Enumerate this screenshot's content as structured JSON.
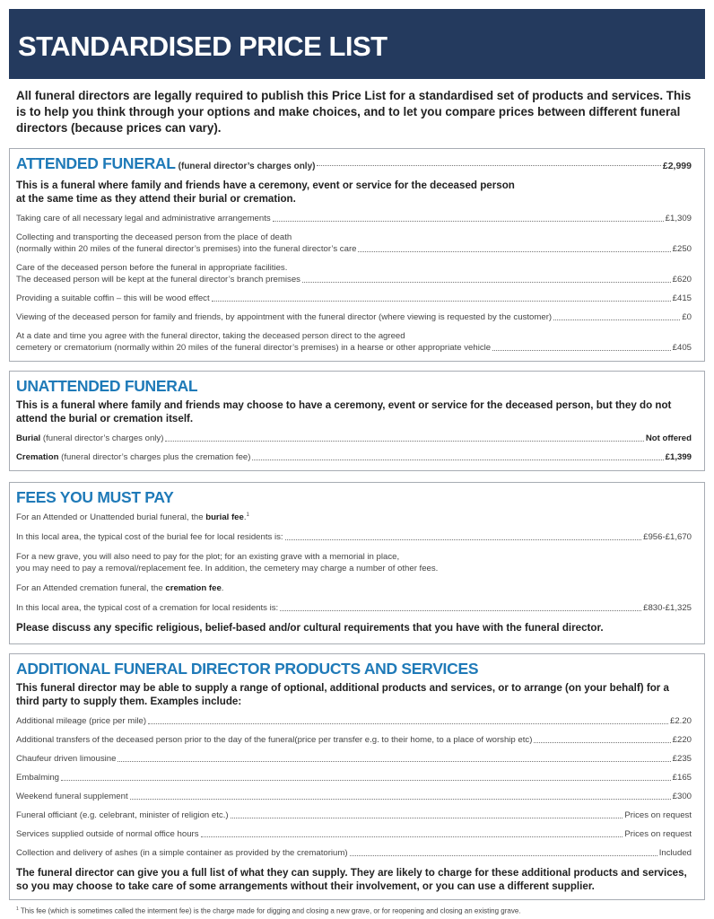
{
  "header": {
    "title": "STANDARDISED PRICE LIST",
    "bg_color": "#243a5e"
  },
  "intro": "All funeral directors are legally required to publish this Price List for a standardised set of products and services. This is to help you think through your options and make choices, and to let you compare prices between different funeral directors (because prices can vary).",
  "accent_color": "#1f7ab8",
  "attended": {
    "title": "ATTENDED FUNERAL",
    "subtitle": "(funeral director’s charges only)",
    "price": "£2,999",
    "description": "This is a funeral where family and friends have a ceremony, event or service for the deceased person\nat the same time as they attend their burial or cremation.",
    "items": [
      {
        "label": "Taking care of all necessary legal and administrative arrangements",
        "price": "£1,309"
      },
      {
        "label": "Collecting and transporting the deceased person from the place of death\n(normally within 20 miles of the funeral director’s premises) into the funeral director’s care",
        "price": "£250"
      },
      {
        "label": "Care of the deceased person before the funeral in appropriate facilities.\nThe deceased person will be kept at the funeral director’s branch premises",
        "price": "£620"
      },
      {
        "label": "Providing a suitable coffin – this will be wood effect",
        "price": "£415"
      },
      {
        "label": "Viewing of the deceased person for family and friends, by appointment with the funeral director (where viewing is requested by the customer)",
        "price": "£0"
      },
      {
        "label": "At a date and time you agree with the funeral director, taking the deceased person direct to the agreed\ncemetery or crematorium (normally within 20 miles of the funeral director’s premises) in a hearse or other appropriate vehicle",
        "price": "£405"
      }
    ]
  },
  "unattended": {
    "title": "UNATTENDED FUNERAL",
    "description": "This is a funeral where family and friends may choose to have a ceremony, event or service for the deceased person, but they do not attend the burial or cremation itself.",
    "items": [
      {
        "bold": "Burial",
        "label": " (funeral director’s charges only)",
        "price": "Not offered"
      },
      {
        "bold": "Cremation",
        "label": " (funeral director’s charges plus the cremation fee)",
        "price": "£1,399"
      }
    ]
  },
  "fees": {
    "title": "FEES YOU MUST PAY",
    "burial_intro": {
      "text": "For an Attended or Unattended burial funeral, the ",
      "bold": "burial fee",
      "suffix": ".",
      "sup": "1"
    },
    "burial_cost": {
      "label": "In this local area, the typical cost of the burial fee for local residents is:",
      "price": "£956-£1,670"
    },
    "grave_note": "For a new grave, you will also need to pay for the plot; for an existing grave with a memorial in place,\nyou may need to pay a removal/replacement fee. In addition, the cemetery may charge a number of other fees.",
    "cremation_intro": {
      "text": "For an Attended cremation funeral, the ",
      "bold": "cremation fee",
      "suffix": "."
    },
    "cremation_cost": {
      "label": "In this local area, the typical cost of a cremation for local residents is:",
      "price": "£830-£1,325"
    },
    "closing": "Please discuss any specific religious, belief-based and/or cultural requirements that you have with the funeral director."
  },
  "additional": {
    "title": "ADDITIONAL FUNERAL DIRECTOR PRODUCTS AND SERVICES",
    "description": "This funeral director may be able to supply a range of optional, additional products and services, or to arrange (on your behalf) for a third party to supply them. Examples include:",
    "items": [
      {
        "label": "Additional mileage (price per mile)",
        "price": "£2.20"
      },
      {
        "label": "Additional transfers of the deceased person prior to the day of the funeral(price per transfer e.g. to their home, to a place of worship etc)",
        "price": "£220"
      },
      {
        "label": "Chaufeur driven limousine",
        "price": "£235"
      },
      {
        "label": "Embalming",
        "price": "£165"
      },
      {
        "label": "Weekend funeral supplement",
        "price": "£300"
      },
      {
        "label": "Funeral officiant (e.g. celebrant, minister of religion etc.)",
        "price": "Prices on request"
      },
      {
        "label": "Services supplied outside of normal office hours",
        "price": "Prices on request"
      },
      {
        "label": "Collection and delivery of ashes (in a simple container as provided by the crematorium)",
        "price": "Included"
      }
    ],
    "closing": "The funeral director can give you a full list of what they can supply. They are likely to charge for these additional products and services, so you may choose to take care of some arrangements without their  involvement, or you can use a different supplier."
  },
  "footnote": {
    "sup": "1",
    "text": " This fee (which is sometimes called the interment fee) is the charge made for digging and closing a new grave, or for reopening and closing an existing grave."
  }
}
